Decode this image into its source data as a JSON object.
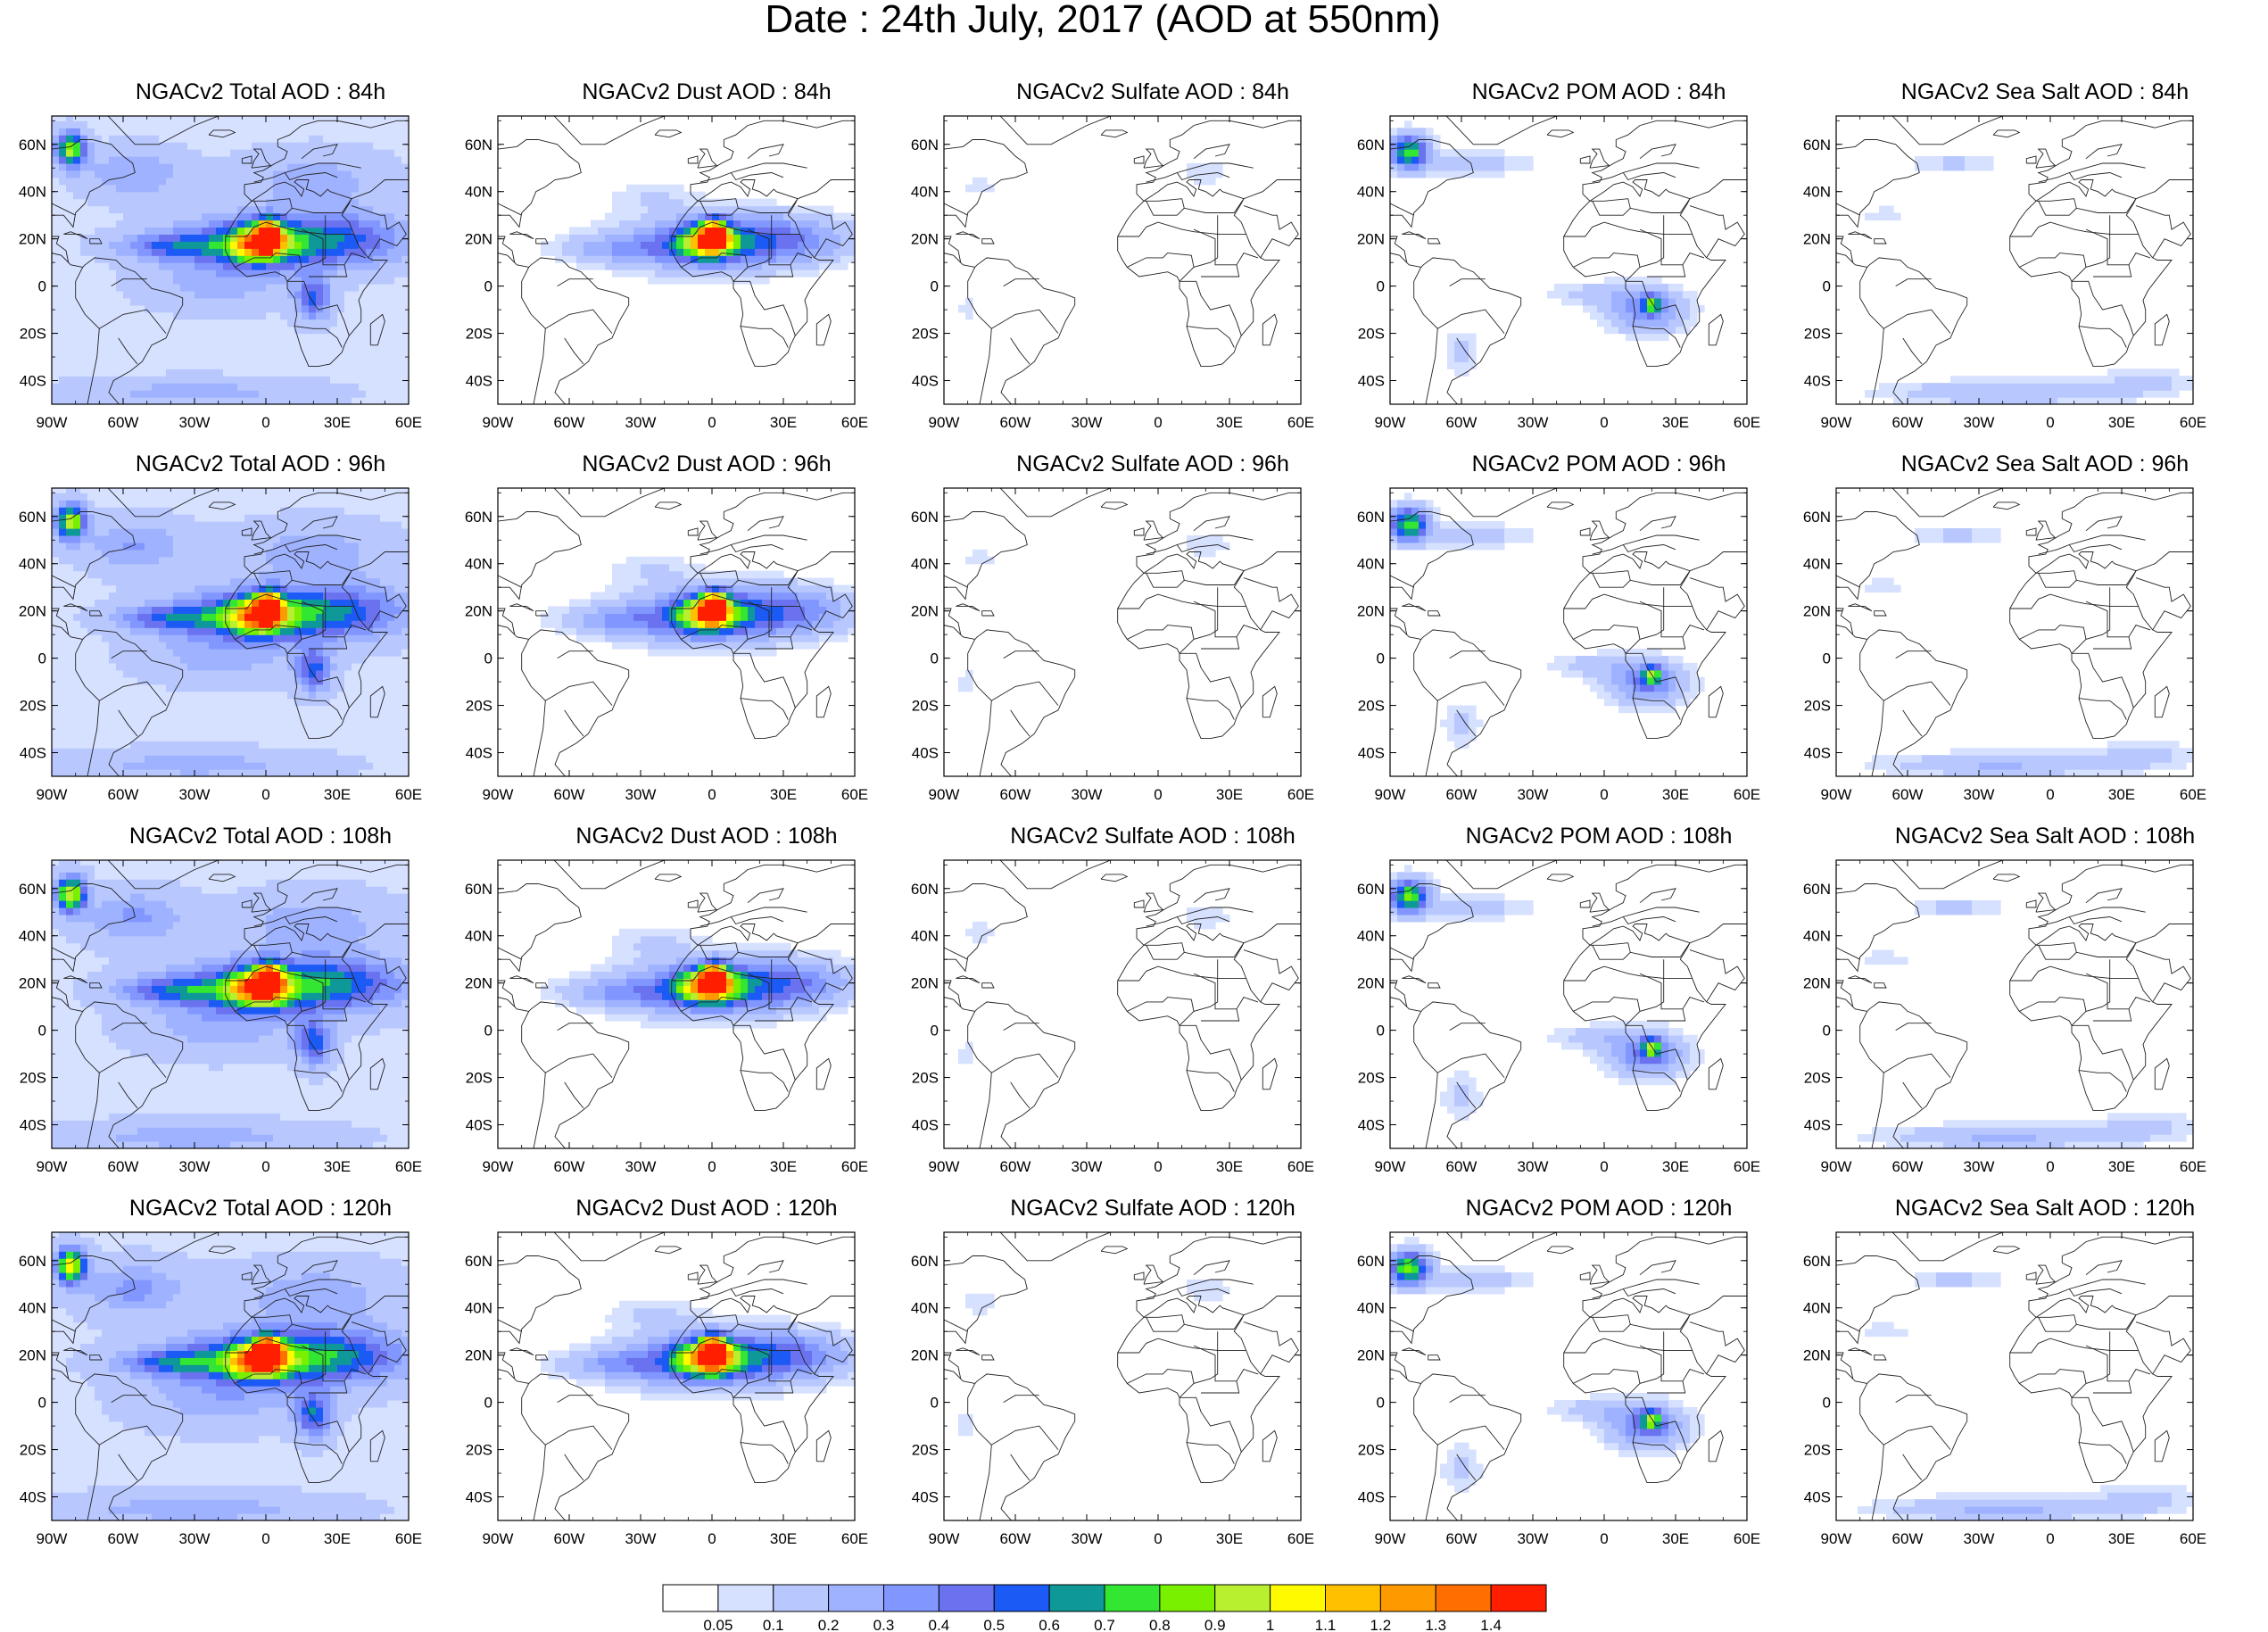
{
  "title": "Date : 24th July, 2017 (AOD at 550nm)",
  "panels": [
    {
      "row": 0,
      "col": 0,
      "species": "total",
      "title": "NGACv2 Total AOD : 84h"
    },
    {
      "row": 0,
      "col": 1,
      "species": "dust",
      "title": "NGACv2 Dust AOD : 84h"
    },
    {
      "row": 0,
      "col": 2,
      "species": "sulfate",
      "title": "NGACv2 Sulfate AOD : 84h"
    },
    {
      "row": 0,
      "col": 3,
      "species": "pom",
      "title": "NGACv2 POM AOD : 84h"
    },
    {
      "row": 0,
      "col": 4,
      "species": "seasalt",
      "title": "NGACv2 Sea Salt AOD : 84h"
    },
    {
      "row": 1,
      "col": 0,
      "species": "total",
      "title": "NGACv2 Total AOD : 96h"
    },
    {
      "row": 1,
      "col": 1,
      "species": "dust",
      "title": "NGACv2 Dust AOD : 96h"
    },
    {
      "row": 1,
      "col": 2,
      "species": "sulfate",
      "title": "NGACv2 Sulfate AOD : 96h"
    },
    {
      "row": 1,
      "col": 3,
      "species": "pom",
      "title": "NGACv2 POM AOD : 96h"
    },
    {
      "row": 1,
      "col": 4,
      "species": "seasalt",
      "title": "NGACv2 Sea Salt AOD : 96h"
    },
    {
      "row": 2,
      "col": 0,
      "species": "total",
      "title": "NGACv2 Total AOD : 108h"
    },
    {
      "row": 2,
      "col": 1,
      "species": "dust",
      "title": "NGACv2 Dust AOD : 108h"
    },
    {
      "row": 2,
      "col": 2,
      "species": "sulfate",
      "title": "NGACv2 Sulfate AOD : 108h"
    },
    {
      "row": 2,
      "col": 3,
      "species": "pom",
      "title": "NGACv2 POM AOD : 108h"
    },
    {
      "row": 2,
      "col": 4,
      "species": "seasalt",
      "title": "NGACv2 Sea Salt AOD : 108h"
    },
    {
      "row": 3,
      "col": 0,
      "species": "total",
      "title": "NGACv2 Total AOD : 120h"
    },
    {
      "row": 3,
      "col": 1,
      "species": "dust",
      "title": "NGACv2 Dust AOD : 120h"
    },
    {
      "row": 3,
      "col": 2,
      "species": "sulfate",
      "title": "NGACv2 Sulfate AOD : 120h"
    },
    {
      "row": 3,
      "col": 3,
      "species": "pom",
      "title": "NGACv2 POM AOD : 120h"
    },
    {
      "row": 3,
      "col": 4,
      "species": "seasalt",
      "title": "NGACv2 Sea Salt  AOD : 120h"
    }
  ],
  "map": {
    "lon_range": [
      -90,
      60
    ],
    "lat_range": [
      -50,
      72
    ],
    "lon_ticks": [
      {
        "value": -90,
        "label": "90W"
      },
      {
        "value": -60,
        "label": "60W"
      },
      {
        "value": -30,
        "label": "30W"
      },
      {
        "value": 0,
        "label": "0"
      },
      {
        "value": 30,
        "label": "30E"
      },
      {
        "value": 60,
        "label": "60E"
      }
    ],
    "lat_ticks": [
      {
        "value": 60,
        "label": "60N"
      },
      {
        "value": 40,
        "label": "40N"
      },
      {
        "value": 20,
        "label": "20N"
      },
      {
        "value": 0,
        "label": "0"
      },
      {
        "value": -20,
        "label": "20S"
      },
      {
        "value": -40,
        "label": "40S"
      }
    ]
  },
  "colorbar": {
    "labels": [
      "0.05",
      "0.1",
      "0.2",
      "0.3",
      "0.4",
      "0.5",
      "0.6",
      "0.7",
      "0.8",
      "0.9",
      "1",
      "1.1",
      "1.2",
      "1.3",
      "1.4"
    ],
    "colors": [
      "#ffffff",
      "#d6e0ff",
      "#b8c8ff",
      "#9fb2ff",
      "#8197ff",
      "#6a72f0",
      "#1c5af5",
      "#0e9898",
      "#32e632",
      "#78f000",
      "#b8f030",
      "#fffa00",
      "#ffc000",
      "#ff9900",
      "#ff6e00",
      "#ff1e00"
    ]
  },
  "fields": {
    "total": {
      "background": 0.08,
      "blobs": [
        {
          "lon": -8,
          "lat": 18,
          "rlon": 34,
          "rlat": 11,
          "v": 0.45
        },
        {
          "lon": -3,
          "lat": 18,
          "rlon": 12,
          "rlat": 7,
          "v": 0.85
        },
        {
          "lon": 1,
          "lat": 22,
          "rlon": 5,
          "rlat": 6,
          "v": 1.1
        },
        {
          "lon": 30,
          "lat": 20,
          "rlon": 30,
          "rlat": 11,
          "v": 0.42
        },
        {
          "lon": -40,
          "lat": 17,
          "rlon": 22,
          "rlat": 5,
          "v": 0.33
        },
        {
          "lon": 20,
          "lat": -5,
          "rlon": 7,
          "rlat": 9,
          "v": 0.45
        },
        {
          "lon": -82,
          "lat": 58,
          "rlon": 6,
          "rlat": 7,
          "v": 0.85
        },
        {
          "lon": -55,
          "lat": 48,
          "rlon": 20,
          "rlat": 10,
          "v": 0.22
        },
        {
          "lon": 20,
          "lat": 45,
          "rlon": 30,
          "rlat": 12,
          "v": 0.17
        },
        {
          "lon": -30,
          "lat": -45,
          "rlon": 50,
          "rlat": 6,
          "v": 0.16
        },
        {
          "lon": -20,
          "lat": 0,
          "rlon": 30,
          "rlat": 10,
          "v": 0.14
        }
      ]
    },
    "dust": {
      "background": 0.0,
      "blobs": [
        {
          "lon": -5,
          "lat": 18,
          "rlon": 35,
          "rlat": 12,
          "v": 0.38
        },
        {
          "lon": -2,
          "lat": 19,
          "rlon": 12,
          "rlat": 7,
          "v": 0.82
        },
        {
          "lon": 1,
          "lat": 22,
          "rlon": 5,
          "rlat": 6,
          "v": 1.05
        },
        {
          "lon": 30,
          "lat": 20,
          "rlon": 30,
          "rlat": 10,
          "v": 0.35
        },
        {
          "lon": -40,
          "lat": 16,
          "rlon": 25,
          "rlat": 6,
          "v": 0.2
        },
        {
          "lon": -25,
          "lat": 38,
          "rlon": 20,
          "rlat": 6,
          "v": 0.09
        }
      ]
    },
    "sulfate": {
      "background": 0.0,
      "blobs": [
        {
          "lon": -75,
          "lat": 42,
          "rlon": 8,
          "rlat": 5,
          "v": 0.08
        },
        {
          "lon": 20,
          "lat": 48,
          "rlon": 12,
          "rlat": 6,
          "v": 0.08
        },
        {
          "lon": -80,
          "lat": -10,
          "rlon": 5,
          "rlat": 8,
          "v": 0.07
        }
      ]
    },
    "pom": {
      "background": 0.0,
      "blobs": [
        {
          "lon": 18,
          "lat": -10,
          "rlon": 16,
          "rlat": 9,
          "v": 0.38
        },
        {
          "lon": 20,
          "lat": -7,
          "rlon": 4,
          "rlat": 4,
          "v": 0.55
        },
        {
          "lon": -5,
          "lat": -3,
          "rlon": 18,
          "rlat": 5,
          "v": 0.13
        },
        {
          "lon": -82,
          "lat": 57,
          "rlon": 8,
          "rlat": 7,
          "v": 0.75
        },
        {
          "lon": -55,
          "lat": 52,
          "rlon": 25,
          "rlat": 5,
          "v": 0.14
        },
        {
          "lon": -60,
          "lat": -28,
          "rlon": 8,
          "rlat": 10,
          "v": 0.12
        }
      ]
    },
    "seasalt": {
      "background": 0.0,
      "blobs": [
        {
          "lon": -20,
          "lat": -45,
          "rlon": 50,
          "rlat": 5,
          "v": 0.2
        },
        {
          "lon": -40,
          "lat": 52,
          "rlon": 20,
          "rlat": 4,
          "v": 0.12
        },
        {
          "lon": -70,
          "lat": 30,
          "rlon": 12,
          "rlat": 4,
          "v": 0.08
        },
        {
          "lon": 40,
          "lat": -40,
          "rlon": 20,
          "rlat": 6,
          "v": 0.12
        }
      ]
    }
  },
  "coastlines": [
    [
      [
        -60,
        -52
      ],
      [
        -70,
        -54
      ],
      [
        -75,
        -50
      ],
      [
        -73,
        -40
      ],
      [
        -71,
        -30
      ],
      [
        -70,
        -18
      ],
      [
        -76,
        -12
      ],
      [
        -80,
        -5
      ],
      [
        -80,
        2
      ],
      [
        -77,
        8
      ],
      [
        -82,
        9
      ],
      [
        -86,
        13
      ],
      [
        -90,
        14
      ]
    ],
    [
      [
        -60,
        -52
      ],
      [
        -66,
        -45
      ],
      [
        -64,
        -40
      ],
      [
        -57,
        -36
      ],
      [
        -52,
        -32
      ],
      [
        -48,
        -25
      ],
      [
        -42,
        -22
      ],
      [
        -39,
        -15
      ],
      [
        -35,
        -8
      ],
      [
        -35,
        -5
      ],
      [
        -40,
        -3
      ],
      [
        -48,
        -1
      ],
      [
        -51,
        2
      ],
      [
        -55,
        6
      ],
      [
        -60,
        8
      ],
      [
        -63,
        11
      ],
      [
        -72,
        12
      ],
      [
        -76,
        9
      ],
      [
        -77,
        8
      ]
    ],
    [
      [
        -90,
        21
      ],
      [
        -87,
        21
      ],
      [
        -88,
        18
      ],
      [
        -84,
        15
      ],
      [
        -83,
        10
      ]
    ],
    [
      [
        -90,
        30
      ],
      [
        -85,
        30
      ],
      [
        -81,
        25
      ],
      [
        -80,
        31
      ],
      [
        -76,
        35
      ],
      [
        -74,
        40
      ],
      [
        -70,
        42
      ],
      [
        -66,
        45
      ],
      [
        -60,
        46
      ],
      [
        -55,
        48
      ],
      [
        -56,
        52
      ],
      [
        -60,
        55
      ],
      [
        -65,
        60
      ],
      [
        -73,
        62
      ],
      [
        -78,
        62
      ],
      [
        -82,
        59
      ],
      [
        -90,
        58
      ]
    ],
    [
      [
        -6,
        36
      ],
      [
        -9,
        39
      ],
      [
        -9,
        43
      ],
      [
        -2,
        44
      ],
      [
        -1,
        46
      ],
      [
        -5,
        48
      ],
      [
        -1,
        49
      ],
      [
        4,
        52
      ],
      [
        8,
        54
      ],
      [
        9,
        57
      ],
      [
        5,
        59
      ],
      [
        5,
        62
      ],
      [
        10,
        64
      ],
      [
        15,
        68
      ],
      [
        22,
        70
      ],
      [
        30,
        70
      ],
      [
        40,
        68
      ],
      [
        44,
        67
      ],
      [
        55,
        70
      ],
      [
        60,
        70
      ]
    ],
    [
      [
        -6,
        36
      ],
      [
        -10,
        32
      ],
      [
        -13,
        28
      ],
      [
        -17,
        21
      ],
      [
        -17,
        15
      ],
      [
        -15,
        11
      ],
      [
        -13,
        8
      ],
      [
        -8,
        4
      ],
      [
        -2,
        5
      ],
      [
        4,
        6
      ],
      [
        8,
        4
      ],
      [
        9,
        2
      ],
      [
        9,
        -1
      ],
      [
        12,
        -5
      ],
      [
        13,
        -12
      ],
      [
        12,
        -17
      ],
      [
        15,
        -27
      ],
      [
        18,
        -34
      ],
      [
        22,
        -34
      ],
      [
        27,
        -33
      ],
      [
        32,
        -28
      ],
      [
        33,
        -25
      ],
      [
        35,
        -21
      ],
      [
        40,
        -15
      ],
      [
        40,
        -10
      ],
      [
        39,
        -6
      ],
      [
        41,
        -2
      ],
      [
        44,
        2
      ],
      [
        51,
        11
      ],
      [
        45,
        11
      ],
      [
        43,
        12
      ],
      [
        39,
        17
      ],
      [
        35,
        27
      ],
      [
        32,
        30
      ],
      [
        35,
        35
      ],
      [
        36,
        37
      ]
    ],
    [
      [
        -6,
        36
      ],
      [
        0,
        36
      ],
      [
        10,
        37
      ],
      [
        11,
        33
      ],
      [
        20,
        31
      ],
      [
        32,
        31
      ],
      [
        36,
        37
      ],
      [
        27,
        40
      ],
      [
        26,
        41
      ],
      [
        23,
        38
      ],
      [
        20,
        40
      ],
      [
        17,
        41
      ],
      [
        18,
        45
      ],
      [
        13,
        45
      ],
      [
        12,
        44
      ],
      [
        16,
        41
      ],
      [
        15,
        38
      ],
      [
        12,
        42
      ],
      [
        8,
        44
      ],
      [
        4,
        43
      ],
      [
        0,
        40
      ],
      [
        -6,
        36
      ]
    ],
    [
      [
        -6,
        50
      ],
      [
        -5,
        53
      ],
      [
        -3,
        56
      ],
      [
        -5,
        58
      ],
      [
        -2,
        58
      ],
      [
        0,
        53
      ],
      [
        2,
        51
      ],
      [
        -6,
        50
      ]
    ],
    [
      [
        -10,
        52
      ],
      [
        -10,
        54
      ],
      [
        -6,
        55
      ],
      [
        -6,
        52
      ],
      [
        -10,
        52
      ]
    ],
    [
      [
        -24,
        64
      ],
      [
        -22,
        66
      ],
      [
        -15,
        66
      ],
      [
        -13,
        65
      ],
      [
        -18,
        63
      ],
      [
        -24,
        64
      ]
    ],
    [
      [
        -72,
        78
      ],
      [
        -55,
        60
      ],
      [
        -45,
        60
      ],
      [
        -30,
        68
      ],
      [
        -20,
        72
      ],
      [
        -18,
        78
      ]
    ],
    [
      [
        44,
        -25
      ],
      [
        47,
        -25
      ],
      [
        50,
        -15
      ],
      [
        49,
        -12
      ],
      [
        44,
        -16
      ],
      [
        44,
        -25
      ]
    ],
    [
      [
        36,
        37
      ],
      [
        44,
        40
      ],
      [
        50,
        45
      ],
      [
        60,
        45
      ]
    ],
    [
      [
        43,
        12
      ],
      [
        48,
        20
      ],
      [
        55,
        17
      ],
      [
        59,
        22
      ],
      [
        56,
        27
      ],
      [
        51,
        24
      ],
      [
        50,
        30
      ],
      [
        48,
        30
      ],
      [
        36,
        34
      ]
    ],
    [
      [
        -85,
        22
      ],
      [
        -78,
        22
      ],
      [
        -75,
        20
      ],
      [
        -82,
        23
      ],
      [
        -85,
        22
      ]
    ],
    [
      [
        -74,
        18
      ],
      [
        -69,
        18
      ],
      [
        -70,
        20
      ],
      [
        -74,
        20
      ],
      [
        -74,
        18
      ]
    ]
  ],
  "borders": [
    [
      [
        -17,
        21
      ],
      [
        -8,
        21
      ],
      [
        -5,
        25
      ],
      [
        0,
        27
      ],
      [
        10,
        24
      ],
      [
        15,
        23
      ],
      [
        25,
        22
      ],
      [
        25,
        12
      ],
      [
        22,
        10
      ],
      [
        15,
        8
      ],
      [
        12,
        5
      ],
      [
        9,
        2
      ]
    ],
    [
      [
        -13,
        8
      ],
      [
        -5,
        12
      ],
      [
        2,
        12
      ],
      [
        4,
        14
      ],
      [
        14,
        13
      ],
      [
        15,
        8
      ]
    ],
    [
      [
        9,
        2
      ],
      [
        16,
        2
      ],
      [
        18,
        -4
      ],
      [
        22,
        -10
      ],
      [
        30,
        -8
      ],
      [
        33,
        -15
      ],
      [
        35,
        -21
      ]
    ],
    [
      [
        12,
        -17
      ],
      [
        20,
        -18
      ],
      [
        25,
        -18
      ],
      [
        30,
        -22
      ],
      [
        32,
        -26
      ]
    ],
    [
      [
        -5,
        36
      ],
      [
        -2,
        30
      ],
      [
        8,
        30
      ],
      [
        11,
        33
      ]
    ],
    [
      [
        25,
        30
      ],
      [
        25,
        22
      ],
      [
        37,
        22
      ]
    ],
    [
      [
        15,
        24
      ],
      [
        24,
        20
      ],
      [
        24,
        9
      ],
      [
        33,
        9
      ],
      [
        34,
        4
      ],
      [
        30,
        4
      ],
      [
        18,
        4
      ]
    ],
    [
      [
        33,
        9
      ],
      [
        36,
        14
      ],
      [
        42,
        12
      ]
    ],
    [
      [
        -70,
        -18
      ],
      [
        -60,
        -12
      ],
      [
        -50,
        -10
      ],
      [
        -42,
        -20
      ]
    ],
    [
      [
        -62,
        -22
      ],
      [
        -58,
        -28
      ],
      [
        -54,
        -33
      ]
    ],
    [
      [
        -65,
        0
      ],
      [
        -60,
        3
      ],
      [
        -50,
        3
      ]
    ],
    [
      [
        -5,
        44
      ],
      [
        3,
        46
      ],
      [
        8,
        48
      ],
      [
        15,
        50
      ],
      [
        22,
        52
      ],
      [
        30,
        52
      ],
      [
        40,
        50
      ]
    ],
    [
      [
        8,
        48
      ],
      [
        10,
        45
      ],
      [
        16,
        47
      ],
      [
        25,
        48
      ],
      [
        30,
        46
      ]
    ],
    [
      [
        15,
        54
      ],
      [
        20,
        58
      ],
      [
        30,
        60
      ],
      [
        28,
        56
      ],
      [
        24,
        55
      ]
    ],
    [
      [
        -80,
        30
      ],
      [
        -90,
        35
      ]
    ]
  ]
}
